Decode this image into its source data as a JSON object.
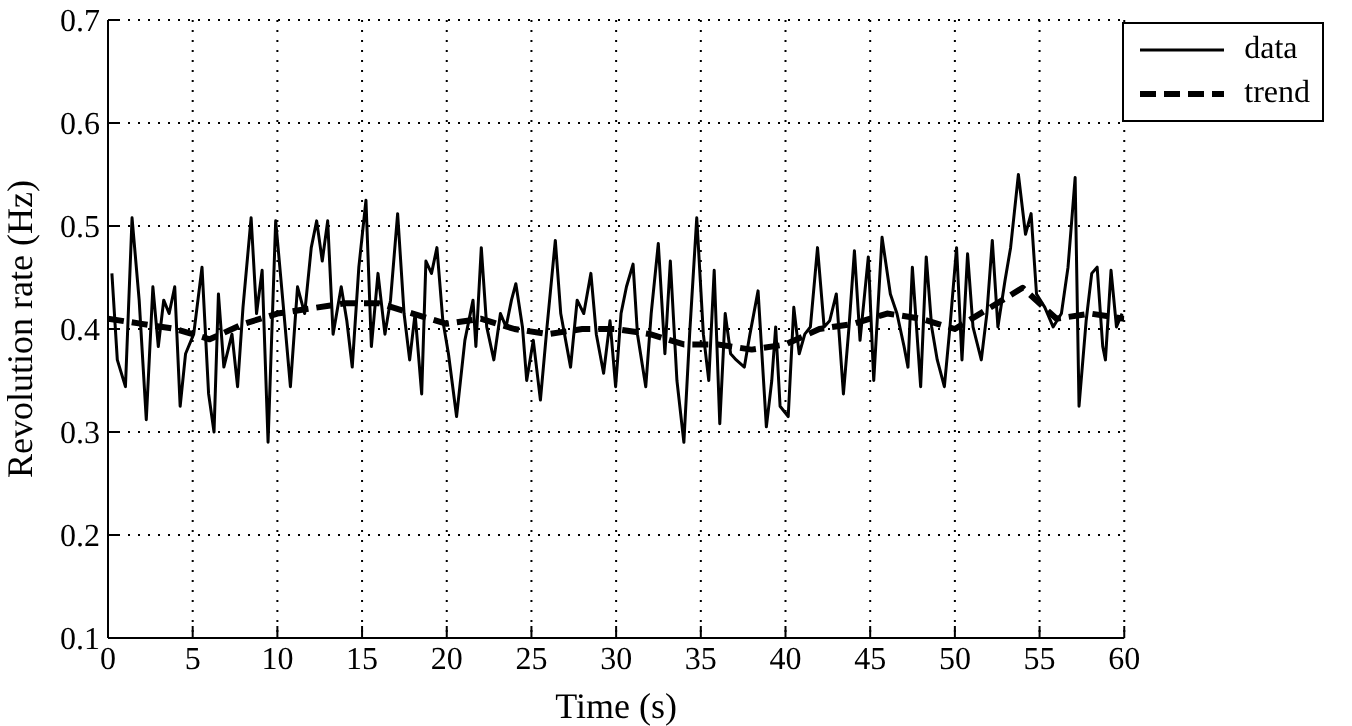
{
  "chart_data": {
    "type": "line",
    "xlabel": "Time (s)",
    "ylabel": "Revolution rate (Hz)",
    "xlim": [
      0,
      60
    ],
    "xticks": [
      0,
      5,
      10,
      15,
      20,
      25,
      30,
      35,
      40,
      45,
      50,
      55,
      60
    ],
    "ylim": [
      0.1,
      0.7
    ],
    "yticks": [
      0.1,
      0.2,
      0.3,
      0.4,
      0.5,
      0.6,
      0.7
    ],
    "grid": true,
    "legend": "top right",
    "marker": "none",
    "series": [
      {
        "name": "data",
        "color": "#000000",
        "line_style": "solid",
        "x": [
          0.23,
          0.55,
          1.03,
          1.42,
          1.84,
          2.26,
          2.65,
          2.97,
          3.29,
          3.61,
          3.94,
          4.26,
          4.58,
          5.06,
          5.55,
          5.94,
          6.26,
          6.52,
          6.84,
          7.32,
          7.65,
          7.97,
          8.45,
          8.77,
          9.1,
          9.45,
          9.9,
          10.39,
          10.77,
          11.19,
          11.61,
          12,
          12.32,
          12.65,
          12.97,
          13.29,
          13.77,
          14.1,
          14.42,
          14.81,
          15.23,
          15.55,
          15.94,
          16.35,
          16.68,
          17.1,
          17.48,
          17.81,
          18.13,
          18.52,
          18.77,
          19.1,
          19.42,
          19.77,
          20.1,
          20.58,
          21.07,
          21.55,
          21.72,
          22.04,
          22.36,
          22.78,
          23.17,
          23.5,
          23.82,
          24.08,
          24.47,
          24.72,
          25.11,
          25.53,
          25.92,
          26.41,
          26.73,
          27.31,
          27.7,
          28.09,
          28.51,
          28.83,
          29.26,
          29.64,
          29.97,
          30.29,
          30.61,
          31,
          31.26,
          31.75,
          32.07,
          32.49,
          32.88,
          33.2,
          33.59,
          34,
          34.34,
          34.76,
          35.15,
          35.47,
          35.79,
          36.12,
          36.44,
          36.76,
          37.09,
          37.57,
          37.9,
          38.38,
          38.87,
          39.19,
          39.42,
          39.68,
          40.16,
          40.49,
          40.81,
          41.14,
          41.47,
          41.89,
          42.28,
          42.61,
          43,
          43.42,
          43.75,
          44.07,
          44.4,
          44.89,
          45.21,
          45.7,
          46.19,
          46.58,
          47,
          47.23,
          47.49,
          47.98,
          48.31,
          48.63,
          48.96,
          49.38,
          49.71,
          50.1,
          50.42,
          50.75,
          51.07,
          51.56,
          51.89,
          52.21,
          52.54,
          52.96,
          53.29,
          53.75,
          54.17,
          54.5,
          54.82,
          55.31,
          55.8,
          56.29,
          56.68,
          57.1,
          57.33,
          57.75,
          58.08,
          58.4,
          58.73,
          58.89,
          59.22,
          59.54,
          59.87
        ],
        "values": [
          0.454,
          0.37,
          0.344,
          0.508,
          0.428,
          0.312,
          0.441,
          0.383,
          0.428,
          0.415,
          0.441,
          0.325,
          0.376,
          0.395,
          0.46,
          0.337,
          0.3,
          0.434,
          0.363,
          0.395,
          0.344,
          0.421,
          0.508,
          0.415,
          0.457,
          0.29,
          0.505,
          0.415,
          0.344,
          0.441,
          0.415,
          0.479,
          0.505,
          0.466,
          0.505,
          0.395,
          0.441,
          0.408,
          0.363,
          0.46,
          0.525,
          0.383,
          0.454,
          0.395,
          0.428,
          0.512,
          0.415,
          0.37,
          0.415,
          0.337,
          0.466,
          0.454,
          0.479,
          0.408,
          0.376,
          0.315,
          0.389,
          0.428,
          0.383,
          0.479,
          0.402,
          0.37,
          0.415,
          0.402,
          0.428,
          0.444,
          0.402,
          0.35,
          0.389,
          0.331,
          0.402,
          0.486,
          0.415,
          0.363,
          0.428,
          0.415,
          0.454,
          0.395,
          0.357,
          0.408,
          0.344,
          0.415,
          0.441,
          0.463,
          0.395,
          0.344,
          0.415,
          0.483,
          0.376,
          0.466,
          0.35,
          0.29,
          0.395,
          0.508,
          0.395,
          0.35,
          0.457,
          0.308,
          0.415,
          0.376,
          0.37,
          0.363,
          0.395,
          0.437,
          0.305,
          0.35,
          0.402,
          0.325,
          0.315,
          0.421,
          0.376,
          0.395,
          0.402,
          0.479,
          0.402,
          0.408,
          0.434,
          0.337,
          0.402,
          0.476,
          0.389,
          0.47,
          0.35,
          0.489,
          0.434,
          0.415,
          0.383,
          0.363,
          0.46,
          0.344,
          0.47,
          0.402,
          0.37,
          0.344,
          0.402,
          0.479,
          0.37,
          0.473,
          0.402,
          0.37,
          0.415,
          0.486,
          0.402,
          0.447,
          0.479,
          0.55,
          0.492,
          0.512,
          0.434,
          0.421,
          0.402,
          0.415,
          0.46,
          0.547,
          0.325,
          0.408,
          0.454,
          0.46,
          0.383,
          0.37,
          0.457,
          0.402,
          0.415
        ]
      },
      {
        "name": "trend",
        "color": "#000000",
        "line_style": "dashed",
        "x": [
          0,
          2,
          4,
          6,
          8,
          10,
          12,
          14,
          16,
          18,
          20,
          22,
          24,
          26,
          28,
          30,
          32,
          34,
          36,
          38,
          40,
          42,
          44,
          46,
          48,
          50,
          52,
          54,
          56,
          58,
          60
        ],
        "values": [
          0.41,
          0.405,
          0.4,
          0.39,
          0.405,
          0.415,
          0.42,
          0.425,
          0.425,
          0.415,
          0.405,
          0.41,
          0.4,
          0.395,
          0.4,
          0.4,
          0.395,
          0.385,
          0.385,
          0.38,
          0.385,
          0.4,
          0.405,
          0.415,
          0.41,
          0.4,
          0.42,
          0.44,
          0.41,
          0.415,
          0.41
        ]
      }
    ]
  }
}
